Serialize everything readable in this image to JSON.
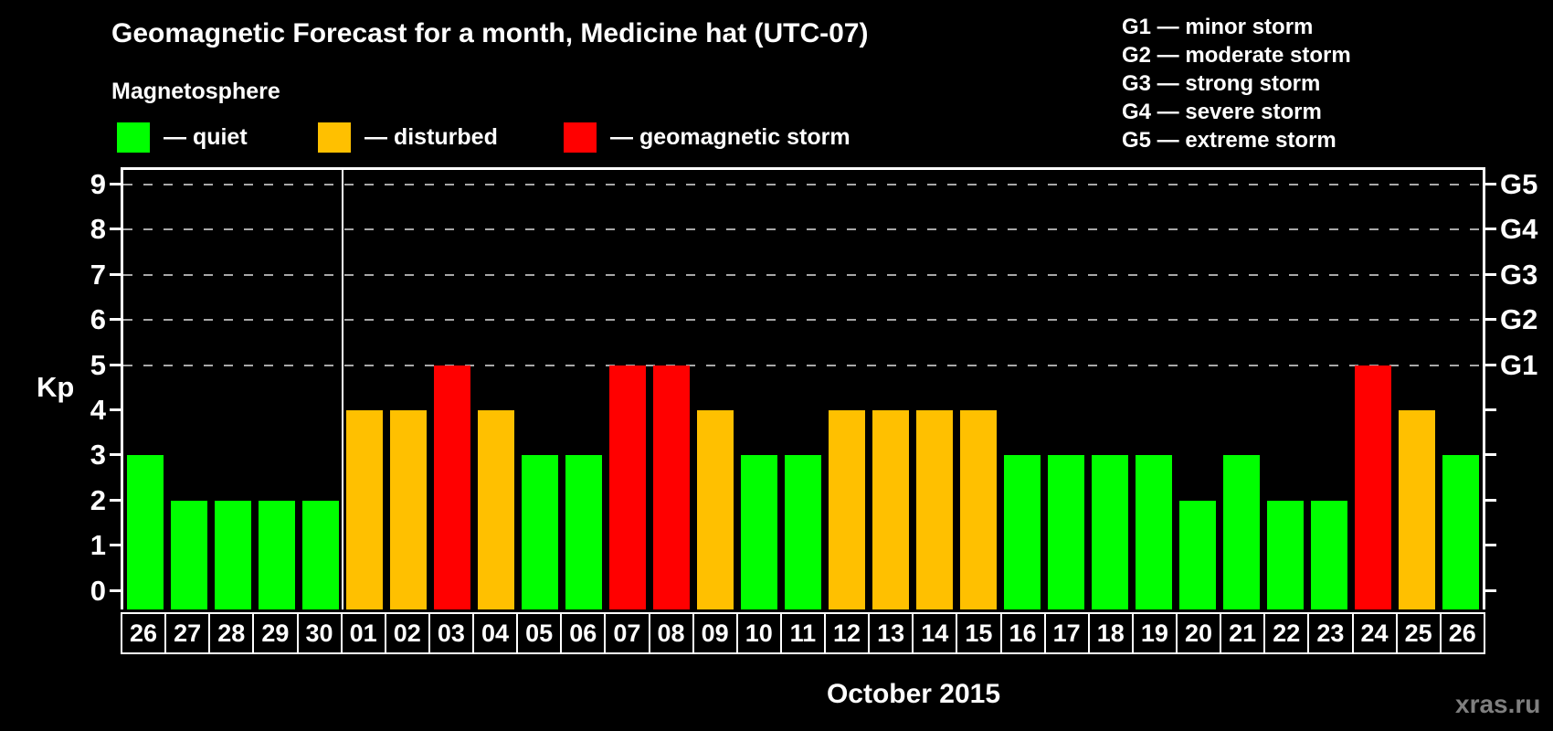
{
  "header": {
    "title": "Geomagnetic Forecast for a month, Medicine hat (UTC-07)",
    "subtitle": "Magnetosphere"
  },
  "legend": {
    "items": [
      {
        "key": "quiet",
        "label": "— quiet",
        "color": "#00ff00"
      },
      {
        "key": "disturbed",
        "label": "— disturbed",
        "color": "#ffc000"
      },
      {
        "key": "storm",
        "label": "— geomagnetic storm",
        "color": "#ff0000"
      }
    ]
  },
  "g_scale_legend": {
    "lines": [
      "G1 — minor storm",
      "G2 — moderate storm",
      "G3 — strong storm",
      "G4 — severe storm",
      "G5 — extreme storm"
    ]
  },
  "watermark": "xras.ru",
  "chart_data": {
    "type": "bar",
    "title": "Geomagnetic Forecast for a month, Medicine hat (UTC-07)",
    "ylabel": "Kp",
    "month_label": "October 2015",
    "ylim": [
      -0.45,
      9.4
    ],
    "yticks": [
      0,
      1,
      2,
      3,
      4,
      5,
      6,
      7,
      8,
      9
    ],
    "gridlines_at": [
      5,
      6,
      7,
      8,
      9
    ],
    "grid_color": "#a8a8a8",
    "right_axis_labels": [
      {
        "value": 5,
        "label": "G1"
      },
      {
        "value": 6,
        "label": "G2"
      },
      {
        "value": 7,
        "label": "G3"
      },
      {
        "value": 8,
        "label": "G4"
      },
      {
        "value": 9,
        "label": "G5"
      }
    ],
    "separator_after_index": 4,
    "categories": [
      "26",
      "27",
      "28",
      "29",
      "30",
      "01",
      "02",
      "03",
      "04",
      "05",
      "06",
      "07",
      "08",
      "09",
      "10",
      "11",
      "12",
      "13",
      "14",
      "15",
      "16",
      "17",
      "18",
      "19",
      "20",
      "21",
      "22",
      "23",
      "24",
      "25",
      "26"
    ],
    "values": [
      3,
      2,
      2,
      2,
      2,
      4,
      4,
      5,
      4,
      3,
      3,
      5,
      5,
      4,
      3,
      3,
      4,
      4,
      4,
      4,
      3,
      3,
      3,
      3,
      2,
      3,
      2,
      2,
      5,
      4,
      3
    ],
    "statuses": [
      "quiet",
      "quiet",
      "quiet",
      "quiet",
      "quiet",
      "disturbed",
      "disturbed",
      "storm",
      "disturbed",
      "quiet",
      "quiet",
      "storm",
      "storm",
      "disturbed",
      "quiet",
      "quiet",
      "disturbed",
      "disturbed",
      "disturbed",
      "disturbed",
      "quiet",
      "quiet",
      "quiet",
      "quiet",
      "quiet",
      "quiet",
      "quiet",
      "quiet",
      "storm",
      "disturbed",
      "quiet"
    ]
  }
}
